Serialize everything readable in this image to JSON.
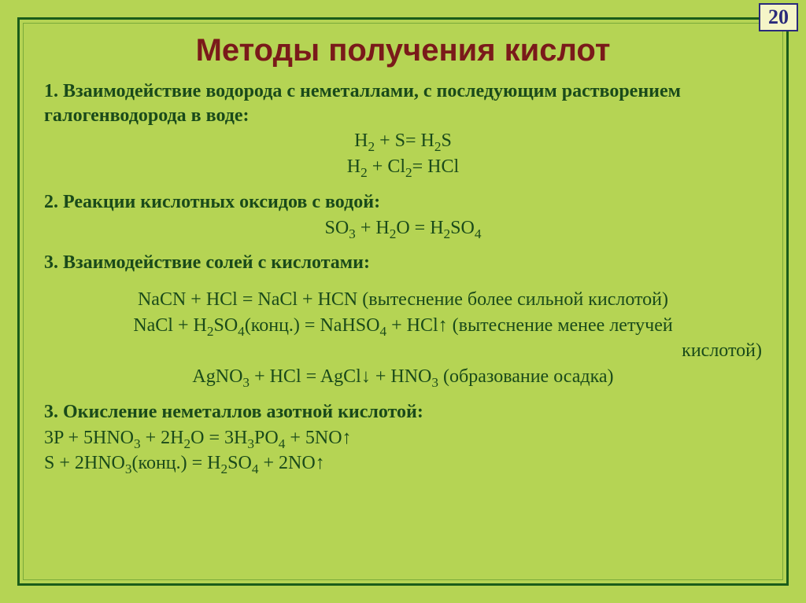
{
  "page_number": "20",
  "title": "Методы получения кислот",
  "colors": {
    "background": "#b5d454",
    "frame_outer": "#1a5c1a",
    "frame_inner": "#7aaa3a",
    "title_color": "#7a1a1a",
    "text_color": "#1a4a1a",
    "pagebox_bg": "#f5f5c8",
    "pagebox_border": "#2a2a7a"
  },
  "typography": {
    "title_fontsize": 40,
    "body_fontsize": 24,
    "page_number_fontsize": 26
  },
  "sections": [
    {
      "head": "1. Взаимодействие водорода с неметаллами, с последующим растворением галогенводорода в воде:",
      "equations_center": [
        "H<sub>2</sub> + S= H<sub>2</sub>S",
        "H<sub>2</sub> + Cl<sub>2</sub>= HCl"
      ]
    },
    {
      "head": "2.  Реакции кислотных оксидов с водой:",
      "equations_center": [
        "SO<sub>3</sub> + H<sub>2</sub>O = H<sub>2</sub>SO<sub>4</sub>"
      ]
    },
    {
      "head": "3. Взаимодействие солей с кислотами:",
      "lines": [
        {
          "align": "center",
          "html": "NaCN + HCl = NaCl + HCN (вытеснение более сильной кислотой)"
        },
        {
          "align": "center",
          "html": "NaCl + H<sub>2</sub>SO<sub>4</sub>(конц.) = NaHSO<sub>4</sub> + HCl↑ (вытеснение менее летучей"
        },
        {
          "align": "right",
          "html": "кислотой)"
        },
        {
          "align": "center",
          "html": "AgNO<sub>3</sub> + HCl = AgCl↓ + HNO<sub>3</sub> (образование осадка)"
        }
      ]
    },
    {
      "head": "3. Окисление неметаллов азотной кислотой:",
      "equations_left": [
        "3P + 5HNO<sub>3</sub> + 2H<sub>2</sub>O = 3H<sub>3</sub>PO<sub>4</sub> + 5NO↑",
        " S + 2HNO<sub>3</sub>(конц.) = H<sub>2</sub>SO<sub>4</sub> + 2NO↑"
      ]
    }
  ]
}
